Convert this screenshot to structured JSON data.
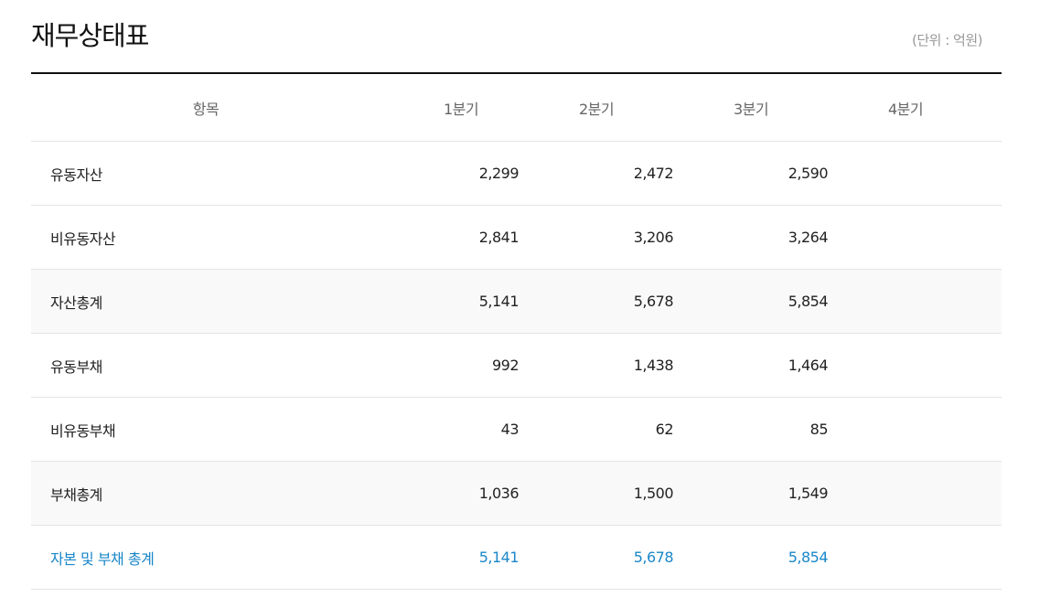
{
  "title": "재무상태표",
  "unit": "(단위 : 억원)",
  "columns": {
    "item": "항목",
    "q1": "1분기",
    "q2": "2분기",
    "q3": "3분기",
    "q4": "4분기"
  },
  "rows": [
    {
      "label": "유동자산",
      "q1": "2,299",
      "q2": "2,472",
      "q3": "2,590",
      "q4": ""
    },
    {
      "label": "비유동자산",
      "q1": "2,841",
      "q2": "3,206",
      "q3": "3,264",
      "q4": ""
    },
    {
      "label": "자산총계",
      "q1": "5,141",
      "q2": "5,678",
      "q3": "5,854",
      "q4": ""
    },
    {
      "label": "유동부채",
      "q1": "992",
      "q2": "1,438",
      "q3": "1,464",
      "q4": ""
    },
    {
      "label": "비유동부채",
      "q1": "43",
      "q2": "62",
      "q3": "85",
      "q4": ""
    },
    {
      "label": "부채총계",
      "q1": "1,036",
      "q2": "1,500",
      "q3": "1,549",
      "q4": ""
    },
    {
      "label": "자본 및 부채 총계",
      "q1": "5,141",
      "q2": "5,678",
      "q3": "5,854",
      "q4": ""
    }
  ],
  "colors": {
    "highlight": "#1a87c9",
    "shaded_row": "#f9f9f9",
    "rule": "#111111",
    "border": "#e2e2e2"
  }
}
